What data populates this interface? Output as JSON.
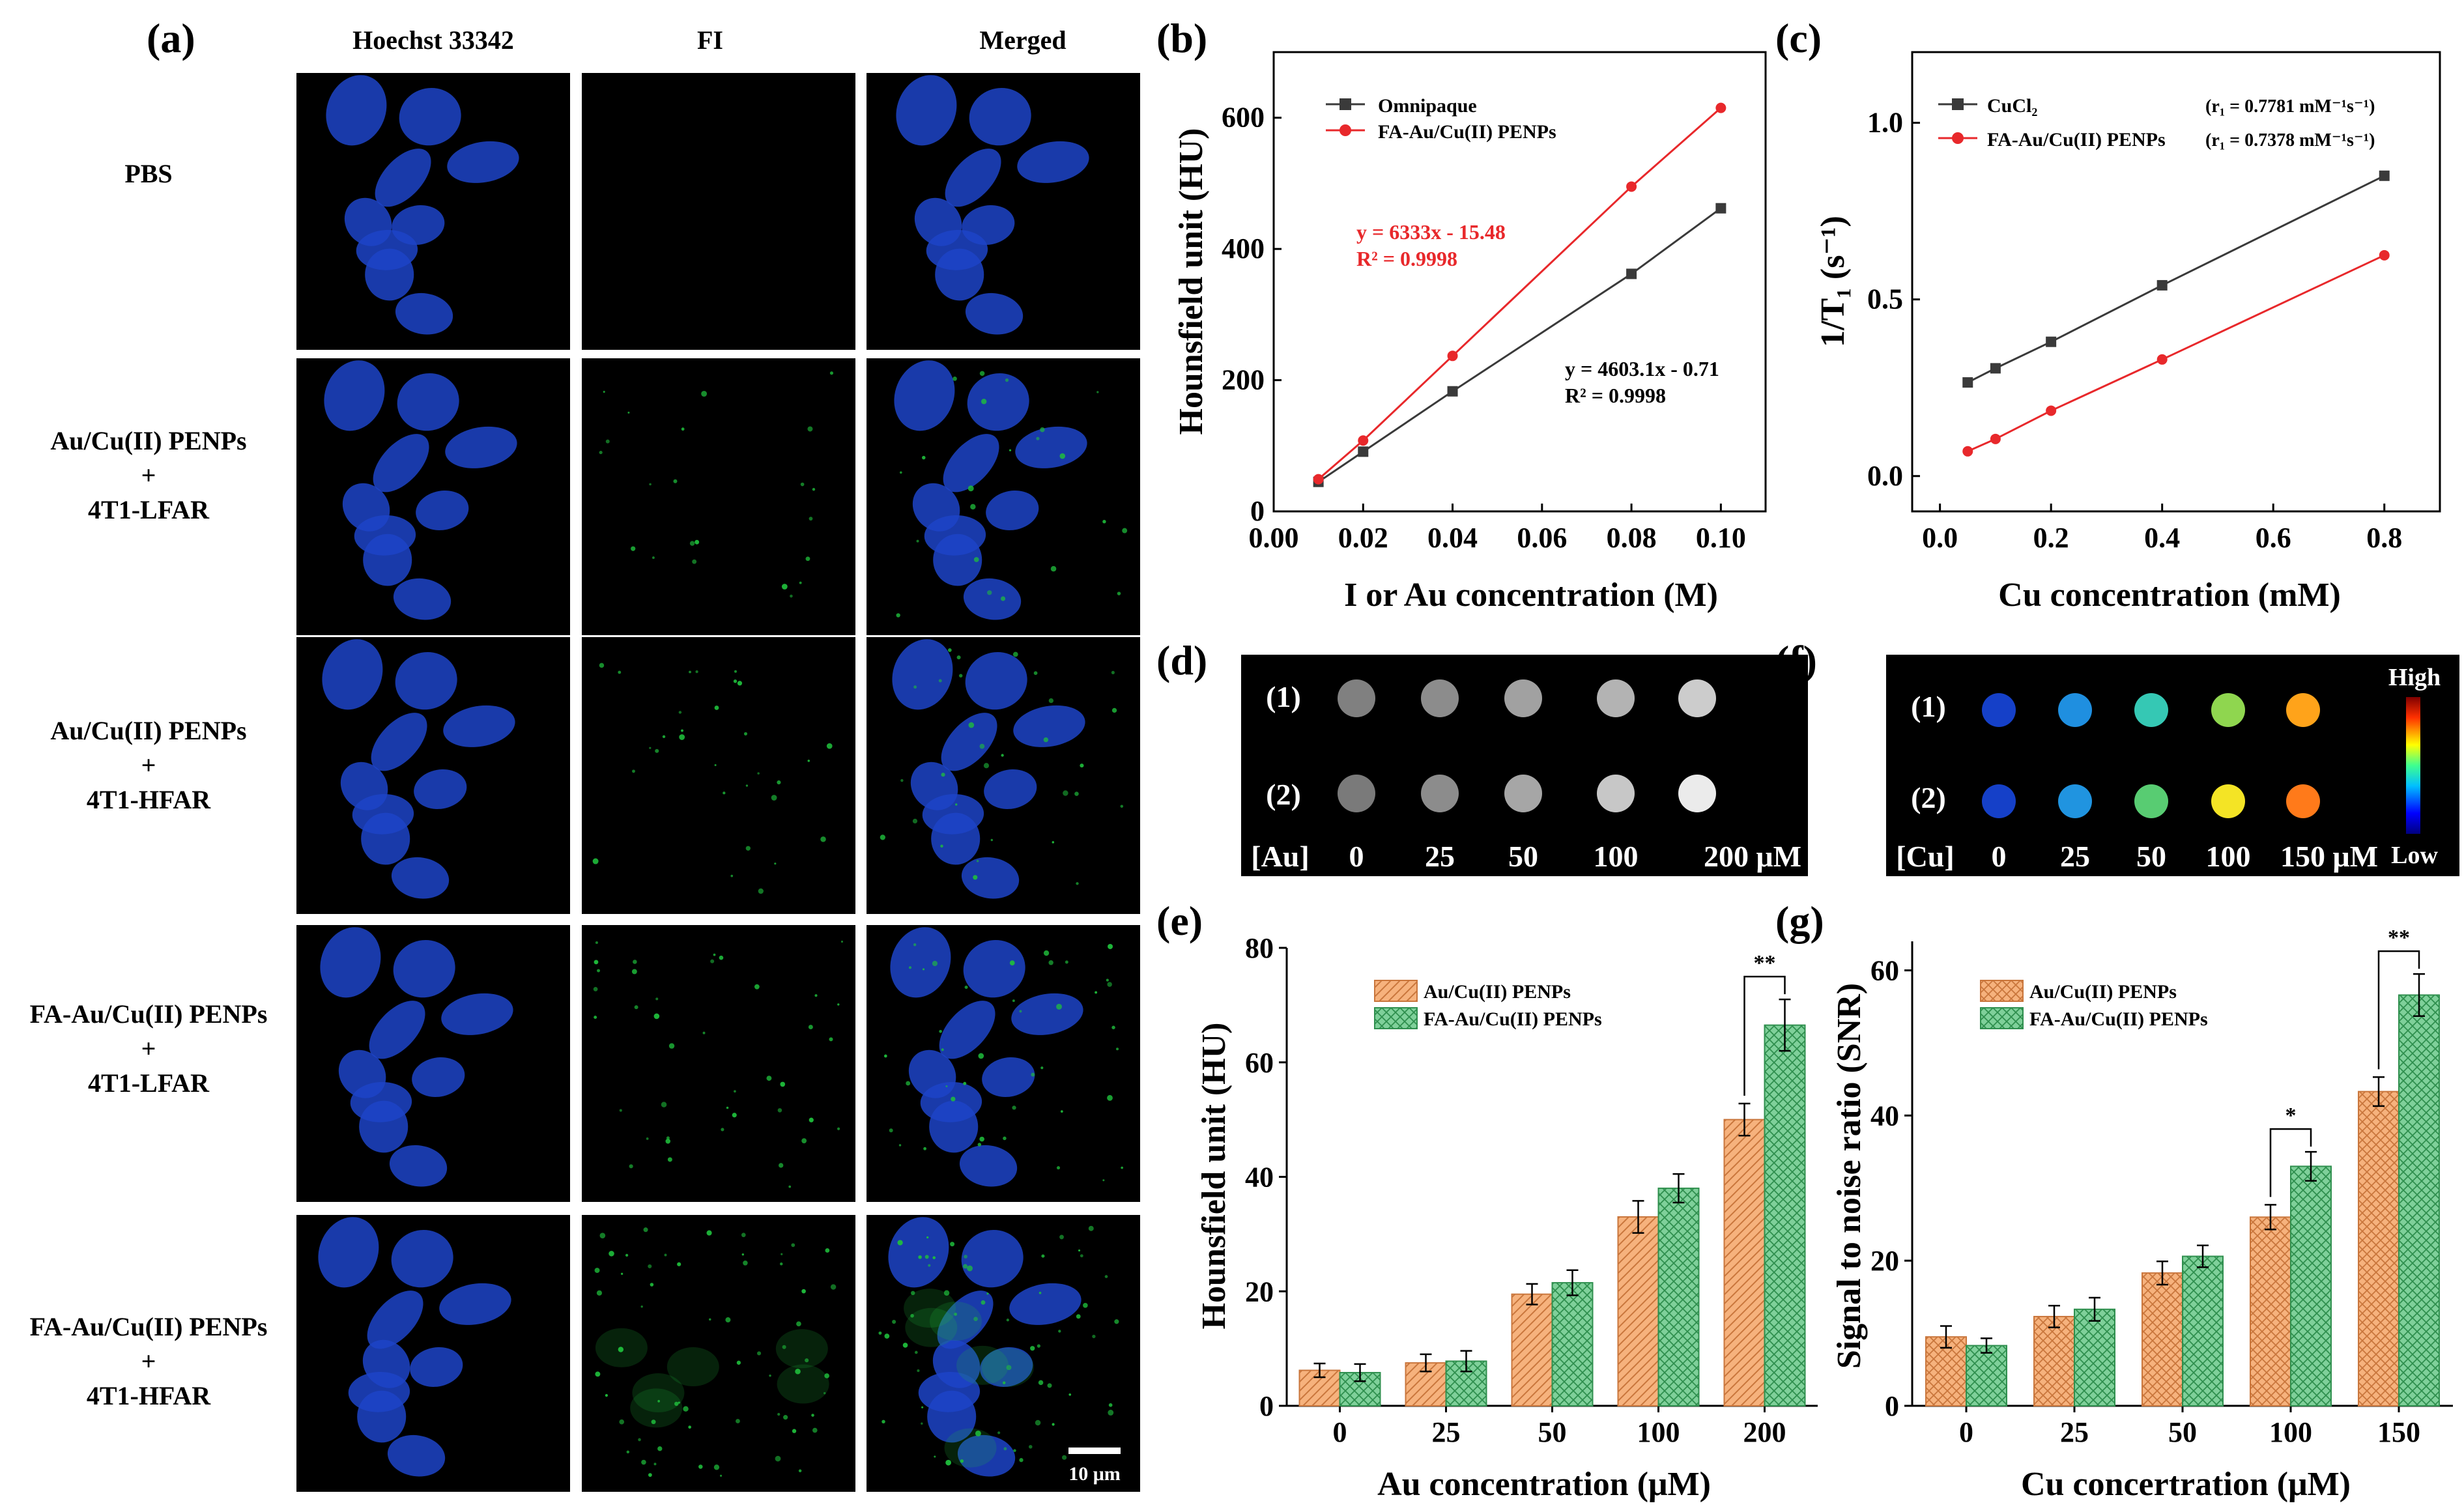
{
  "panel_a": {
    "label": "(a)",
    "columns": [
      "Hoechst  33342",
      "FI",
      "Merged"
    ],
    "rows": [
      {
        "lines": [
          "PBS"
        ],
        "dots": 0
      },
      {
        "lines": [
          "Au/Cu(II)  PENPs",
          "+",
          "4T1-LFAR"
        ],
        "dots": 22
      },
      {
        "lines": [
          "Au/Cu(II)  PENPs",
          "+",
          "4T1-HFAR"
        ],
        "dots": 30
      },
      {
        "lines": [
          "FA-Au/Cu(II)  PENPs",
          "+",
          "4T1-LFAR"
        ],
        "dots": 40
      },
      {
        "lines": [
          "FA-Au/Cu(II)  PENPs",
          "+",
          "4T1-HFAR"
        ],
        "dots": 60
      }
    ],
    "scale_bar": "10 μm",
    "colors": {
      "nucleus": "#1d44c8",
      "fi": "#1fbf3c",
      "background": "#000000"
    }
  },
  "chart_data": [
    {
      "id": "b",
      "label": "(b)",
      "type": "line",
      "xlabel": "I or Au concentration (M)",
      "ylabel": "Hounsfield unit (HU)",
      "xlim": [
        0,
        0.11
      ],
      "ylim": [
        0,
        700
      ],
      "xticks": [
        0.0,
        0.02,
        0.04,
        0.06,
        0.08,
        0.1
      ],
      "xtick_labels": [
        "0.00",
        "0.02",
        "0.04",
        "0.06",
        "0.08",
        "0.10"
      ],
      "yticks": [
        0,
        200,
        400,
        600
      ],
      "ytick_labels": [
        "0",
        "200",
        "400",
        "600"
      ],
      "series": [
        {
          "name": "Omnipaque",
          "color": "#3a3a3a",
          "marker": "square",
          "x": [
            0.01,
            0.02,
            0.04,
            0.08,
            0.1
          ],
          "y": [
            45,
            91,
            183,
            362,
            462
          ]
        },
        {
          "name": "FA-Au/Cu(II) PENPs",
          "color": "#e8282b",
          "marker": "circle",
          "x": [
            0.01,
            0.02,
            0.04,
            0.08,
            0.1
          ],
          "y": [
            49,
            108,
            237,
            495,
            615
          ]
        }
      ],
      "annotations": [
        {
          "lines": [
            "y = 6333x - 15.48",
            "R² = 0.9998"
          ],
          "color": "#e8282b"
        },
        {
          "lines": [
            "y = 4603.1x - 0.71",
            "R² = 0.9998"
          ],
          "color": "#000000"
        }
      ]
    },
    {
      "id": "c",
      "label": "(c)",
      "type": "line",
      "xlabel": "Cu concentration (mM)",
      "ylabel": "1/T₁ (s⁻¹)",
      "xlim": [
        -0.05,
        0.9
      ],
      "ylim": [
        -0.1,
        1.2
      ],
      "xticks": [
        0.0,
        0.2,
        0.4,
        0.6,
        0.8
      ],
      "xtick_labels": [
        "0.0",
        "0.2",
        "0.4",
        "0.6",
        "0.8"
      ],
      "yticks": [
        0.0,
        0.5,
        1.0
      ],
      "ytick_labels": [
        "0.0",
        "0.5",
        "1.0"
      ],
      "series": [
        {
          "name": "CuCl₂",
          "color": "#3a3a3a",
          "marker": "square",
          "x": [
            0.05,
            0.1,
            0.2,
            0.4,
            0.8
          ],
          "y": [
            0.265,
            0.305,
            0.38,
            0.54,
            0.85
          ],
          "relaxivity": "(r₁ = 0.7781 mM⁻¹s⁻¹)"
        },
        {
          "name": "FA-Au/Cu(II) PENPs",
          "color": "#e8282b",
          "marker": "circle",
          "x": [
            0.05,
            0.1,
            0.2,
            0.4,
            0.8
          ],
          "y": [
            0.07,
            0.105,
            0.185,
            0.33,
            0.625
          ],
          "relaxivity": "(r₁ = 0.7378 mM⁻¹s⁻¹)"
        }
      ]
    },
    {
      "id": "e",
      "label": "(e)",
      "type": "bar",
      "xlabel": "Au concentration (μM)",
      "ylabel": "Hounsfield unit (HU)",
      "categories": [
        "0",
        "25",
        "50",
        "100",
        "200"
      ],
      "ylim": [
        0,
        80
      ],
      "yticks": [
        0,
        20,
        40,
        60,
        80
      ],
      "ytick_labels": [
        "0",
        "20",
        "40",
        "60",
        "80"
      ],
      "series": [
        {
          "name": "Au/Cu(II) PENPs",
          "color": "#f6b27d",
          "pattern": "diag",
          "values": [
            6.2,
            7.5,
            19.5,
            33,
            50
          ],
          "errors": [
            1.2,
            1.5,
            1.8,
            2.8,
            2.8
          ]
        },
        {
          "name": "FA-Au/Cu(II) PENPs",
          "color": "#7fd09a",
          "pattern": "cross",
          "values": [
            5.8,
            7.8,
            21.5,
            38,
            66.5
          ],
          "errors": [
            1.5,
            1.8,
            2.2,
            2.5,
            4.5
          ]
        }
      ],
      "significance": [
        {
          "category": "200",
          "label": "**"
        }
      ]
    },
    {
      "id": "g",
      "label": "(g)",
      "type": "bar",
      "xlabel": "Cu concertration (μM)",
      "ylabel": "Signal to noise ratio (SNR)",
      "categories": [
        "0",
        "25",
        "50",
        "100",
        "150"
      ],
      "ylim": [
        0,
        64
      ],
      "yticks": [
        0,
        20,
        40,
        60
      ],
      "ytick_labels": [
        "0",
        "20",
        "40",
        "60"
      ],
      "series": [
        {
          "name": "Au/Cu(II) PENPs",
          "color": "#f6b27d",
          "pattern": "cross",
          "values": [
            9.5,
            12.3,
            18.3,
            26,
            43.3
          ],
          "errors": [
            1.5,
            1.5,
            1.6,
            1.7,
            2.0
          ]
        },
        {
          "name": "FA-Au/Cu(II) PENPs",
          "color": "#7fd09a",
          "pattern": "cross",
          "values": [
            8.3,
            13.3,
            20.6,
            33,
            56.6
          ],
          "errors": [
            1.0,
            1.6,
            1.5,
            2.0,
            2.9
          ]
        }
      ],
      "significance": [
        {
          "category": "100",
          "label": "*"
        },
        {
          "category": "150",
          "label": "**"
        }
      ]
    }
  ],
  "panel_d": {
    "label": "(d)",
    "row_labels": [
      "(1)",
      "(2)"
    ],
    "axis_label": "[Au]",
    "values": [
      "0",
      "25",
      "50",
      "100",
      "200 μM"
    ],
    "intensity_row1": [
      0.5,
      0.55,
      0.63,
      0.7,
      0.8
    ],
    "intensity_row2": [
      0.48,
      0.55,
      0.65,
      0.78,
      0.92
    ]
  },
  "panel_f": {
    "label": "(f)",
    "row_labels": [
      "(1)",
      "(2)"
    ],
    "axis_label": "[Cu]",
    "values": [
      "0",
      "25",
      "50",
      "100",
      "150 μM"
    ],
    "colorbar_high": "High",
    "colorbar_low": "Low",
    "colors_row1": [
      "#1540c8",
      "#1f8fe0",
      "#35c8b4",
      "#8fd64f",
      "#ffa31a"
    ],
    "colors_row2": [
      "#1540c8",
      "#2094e0",
      "#58cc72",
      "#f4e425",
      "#ff7a1a"
    ]
  }
}
